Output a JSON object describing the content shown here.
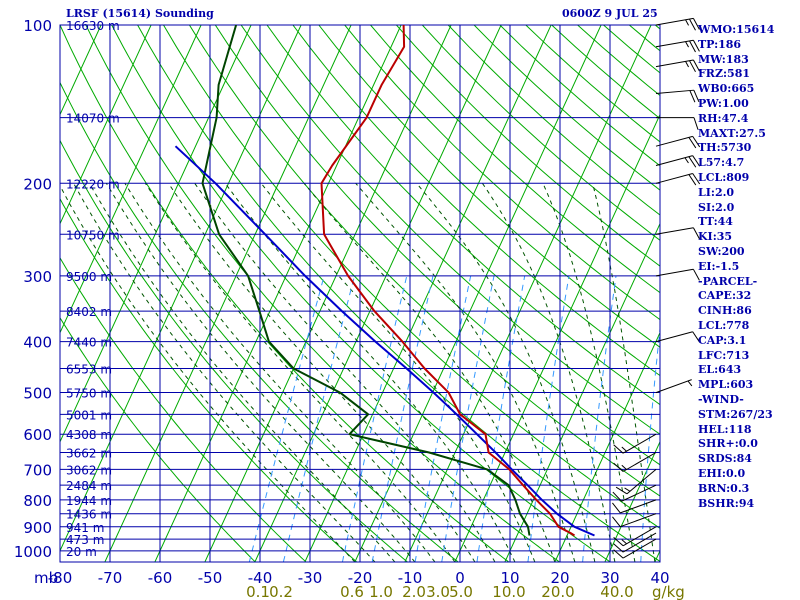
{
  "title_left": "LRSF (15614) Sounding",
  "title_right": "0600Z  9 JUL 25",
  "indices": [
    "WMO:15614",
    "TP:186",
    "MW:183",
    "FRZ:581",
    "WB0:665",
    "PW:1.00",
    "RH:47.4",
    "MAXT:27.5",
    "TH:5730",
    "L57:4.7",
    "LCL:809",
    "LI:2.0",
    "SI:2.0",
    "TT:44",
    "KI:35",
    "SW:200",
    "EI:-1.5",
    "-PARCEL-",
    "CAPE:32",
    "CINH:86",
    "LCL:778",
    "CAP:3.1",
    "LFC:713",
    "EL:643",
    "MPL:603",
    "-WIND-",
    "STM:267/23",
    "HEL:118",
    "SHR+:0.0",
    "SRDS:84",
    "EHI:0.0",
    "BRN:0.3",
    "BSHR:94"
  ],
  "colors": {
    "axes": "#0000aa",
    "dry_adiabat": "#00aa00",
    "moist_adiabat": "#005500",
    "mixing_ratio": "#3399ff",
    "temperature": "#bb0000",
    "dewpoint": "#004400",
    "parcel": "#0000cc",
    "mixing_label": "#777700",
    "wind_barb": "#000000"
  },
  "chart_data": {
    "type": "skew-t",
    "pressure_levels": [
      100,
      200,
      300,
      400,
      500,
      600,
      700,
      800,
      900,
      1000
    ],
    "pressure_tick_labels": [
      "100",
      "200",
      "300",
      "400",
      "500",
      "600",
      "700",
      "800",
      "900",
      "1000"
    ],
    "temperature_ticks": [
      -80,
      -70,
      -60,
      -50,
      -40,
      -30,
      -20,
      -10,
      0,
      10,
      20,
      30,
      40
    ],
    "temperature_tick_labels": [
      "-80",
      "-70",
      "-60",
      "-50",
      "-40",
      "-30",
      "-20",
      "-10",
      "0",
      "10",
      "20",
      "30",
      "40"
    ],
    "x_unit_label": "mb",
    "height_labels": [
      {
        "p": 100,
        "label": "16630 m"
      },
      {
        "p": 150,
        "label": "14070 m"
      },
      {
        "p": 200,
        "label": "12220 m"
      },
      {
        "p": 250,
        "label": "10750 m"
      },
      {
        "p": 300,
        "label": "9500 m"
      },
      {
        "p": 350,
        "label": "8402 m"
      },
      {
        "p": 400,
        "label": "7440 m"
      },
      {
        "p": 450,
        "label": "6553 m"
      },
      {
        "p": 500,
        "label": "5750 m"
      },
      {
        "p": 550,
        "label": "5001 m"
      },
      {
        "p": 600,
        "label": "4308 m"
      },
      {
        "p": 650,
        "label": "3662 m"
      },
      {
        "p": 700,
        "label": "3062 m"
      },
      {
        "p": 750,
        "label": "2484 m"
      },
      {
        "p": 800,
        "label": "1944 m"
      },
      {
        "p": 850,
        "label": "1436 m"
      },
      {
        "p": 900,
        "label": "941 m"
      },
      {
        "p": 950,
        "label": "473 m"
      },
      {
        "p": 1000,
        "label": "20 m"
      }
    ],
    "mixing_ratio_labels": [
      "0.1",
      "0.2",
      "0.6",
      "1.0",
      "2.0",
      "3.0",
      "5.0",
      "10.0",
      "20.0",
      "40.0"
    ],
    "mixing_ratio_unit": "g/kg",
    "mixing_ratio_label_temps": [
      -40.4,
      -35.8,
      -21.6,
      -15.8,
      -9.2,
      -4.4,
      0.2,
      9.8,
      19.6,
      31.4
    ],
    "mixing_ratio_values": [
      0.1,
      0.2,
      0.6,
      1.0,
      2.0,
      3.0,
      5.0,
      10.0,
      20.0,
      40.0
    ],
    "temperature_profile": [
      {
        "p": 935,
        "t": 21.5
      },
      {
        "p": 925,
        "t": 20.5
      },
      {
        "p": 900,
        "t": 17.5
      },
      {
        "p": 850,
        "t": 14.6
      },
      {
        "p": 800,
        "t": 10.6
      },
      {
        "p": 750,
        "t": 6.6
      },
      {
        "p": 700,
        "t": 2.4
      },
      {
        "p": 650,
        "t": -3.3
      },
      {
        "p": 600,
        "t": -5.6
      },
      {
        "p": 550,
        "t": -12.5
      },
      {
        "p": 500,
        "t": -16.8
      },
      {
        "p": 450,
        "t": -23.8
      },
      {
        "p": 400,
        "t": -30.7
      },
      {
        "p": 350,
        "t": -39.1
      },
      {
        "p": 300,
        "t": -47.6
      },
      {
        "p": 250,
        "t": -56.2
      },
      {
        "p": 200,
        "t": -61.4
      },
      {
        "p": 185,
        "t": -60.9
      },
      {
        "p": 150,
        "t": -58.4
      },
      {
        "p": 130,
        "t": -58.4
      },
      {
        "p": 110,
        "t": -57.4
      },
      {
        "p": 100,
        "t": -59.5
      }
    ],
    "dewpoint_profile": [
      {
        "p": 935,
        "t": 12.5
      },
      {
        "p": 900,
        "t": 11.4
      },
      {
        "p": 850,
        "t": 8.6
      },
      {
        "p": 800,
        "t": 6.4
      },
      {
        "p": 750,
        "t": 3.7
      },
      {
        "p": 700,
        "t": -2.0
      },
      {
        "p": 650,
        "t": -15.2
      },
      {
        "p": 600,
        "t": -32.8
      },
      {
        "p": 550,
        "t": -30.9
      },
      {
        "p": 500,
        "t": -38.5
      },
      {
        "p": 450,
        "t": -50.0
      },
      {
        "p": 400,
        "t": -57.4
      },
      {
        "p": 350,
        "t": -62.1
      },
      {
        "p": 300,
        "t": -67.6
      },
      {
        "p": 250,
        "t": -77.2
      },
      {
        "p": 200,
        "t": -85.2
      },
      {
        "p": 150,
        "t": -88.4
      },
      {
        "p": 130,
        "t": -91.0
      },
      {
        "p": 100,
        "t": -93.0
      }
    ],
    "parcel_profile": [
      {
        "p": 935,
        "t": 25.5
      },
      {
        "p": 900,
        "t": 20.7
      },
      {
        "p": 850,
        "t": 16.0
      },
      {
        "p": 800,
        "t": 11.7
      },
      {
        "p": 750,
        "t": 7.5
      },
      {
        "p": 700,
        "t": 2.9
      },
      {
        "p": 650,
        "t": -1.9
      },
      {
        "p": 600,
        "t": -7.3
      },
      {
        "p": 550,
        "t": -13.2
      },
      {
        "p": 500,
        "t": -19.8
      },
      {
        "p": 450,
        "t": -27.4
      },
      {
        "p": 400,
        "t": -36.1
      },
      {
        "p": 350,
        "t": -45.6
      },
      {
        "p": 300,
        "t": -56.2
      },
      {
        "p": 250,
        "t": -68.0
      },
      {
        "p": 200,
        "t": -82.6
      },
      {
        "p": 170,
        "t": -94.0
      }
    ],
    "wind_barbs": [
      {
        "p": 100,
        "dir": 80,
        "spd": 25
      },
      {
        "p": 110,
        "dir": 80,
        "spd": 25
      },
      {
        "p": 120,
        "dir": 80,
        "spd": 25
      },
      {
        "p": 135,
        "dir": 85,
        "spd": 20
      },
      {
        "p": 150,
        "dir": 90,
        "spd": 10
      },
      {
        "p": 170,
        "dir": 75,
        "spd": 20
      },
      {
        "p": 185,
        "dir": 75,
        "spd": 25
      },
      {
        "p": 200,
        "dir": 75,
        "spd": 20
      },
      {
        "p": 250,
        "dir": 80,
        "spd": 10
      },
      {
        "p": 300,
        "dir": 80,
        "spd": 10
      },
      {
        "p": 400,
        "dir": 75,
        "spd": 10
      },
      {
        "p": 500,
        "dir": 70,
        "spd": 5
      },
      {
        "p": 600,
        "dir": 240,
        "spd": 15
      },
      {
        "p": 650,
        "dir": 240,
        "spd": 15
      },
      {
        "p": 700,
        "dir": 230,
        "spd": 15
      },
      {
        "p": 750,
        "dir": 245,
        "spd": 10
      },
      {
        "p": 800,
        "dir": 250,
        "spd": 10
      },
      {
        "p": 850,
        "dir": 250,
        "spd": 10
      },
      {
        "p": 900,
        "dir": 240,
        "spd": 15
      },
      {
        "p": 925,
        "dir": 240,
        "spd": 10
      },
      {
        "p": 950,
        "dir": 240,
        "spd": 10
      }
    ]
  }
}
